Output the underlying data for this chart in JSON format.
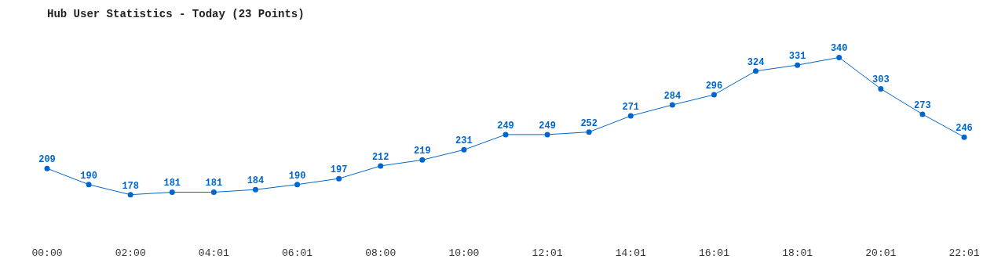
{
  "chart_data": {
    "type": "line",
    "title": "Hub User Statistics - Today (23 Points)",
    "categories": [
      "00:00",
      null,
      "02:00",
      null,
      "04:01",
      null,
      "06:01",
      null,
      "08:00",
      null,
      "10:00",
      null,
      "12:01",
      null,
      "14:01",
      null,
      "16:01",
      null,
      "18:01",
      null,
      "20:01",
      null,
      "22:01"
    ],
    "series": [
      {
        "color": "#0066cc",
        "values": [
          209,
          190,
          178,
          181,
          181,
          184,
          190,
          197,
          212,
          219,
          231,
          249,
          249,
          252,
          271,
          284,
          296,
          324,
          331,
          340,
          303,
          273,
          246
        ]
      }
    ],
    "data_labels": true,
    "marker": "circle",
    "line_style": "solid",
    "grid": false,
    "legend": false
  }
}
